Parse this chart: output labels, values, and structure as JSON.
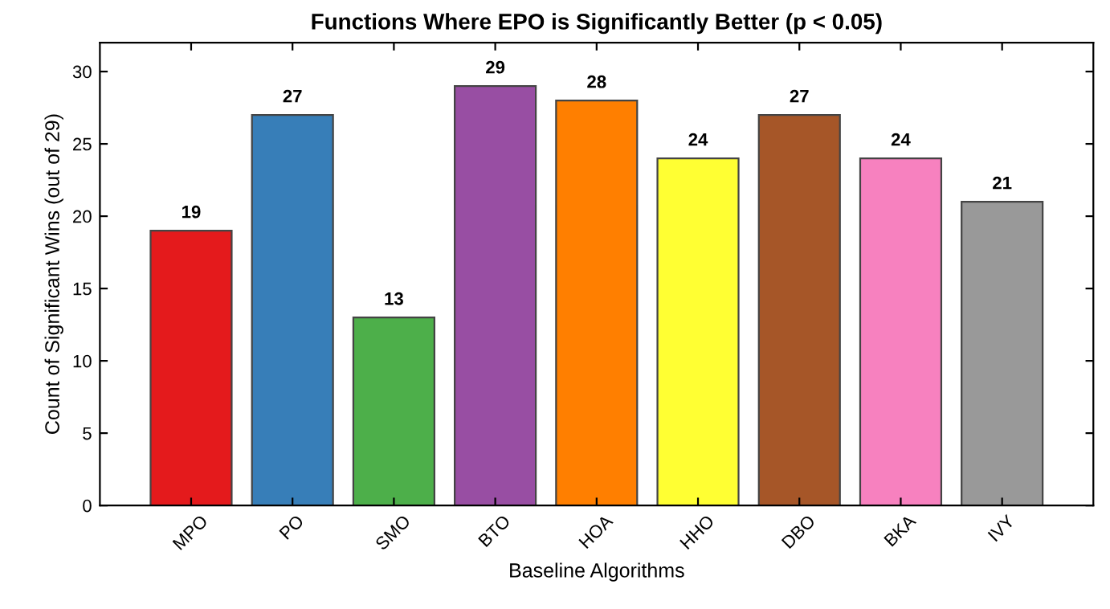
{
  "chart_data": {
    "type": "bar",
    "title": "Functions Where EPO is Significantly Better (p < 0.05)",
    "xlabel": "Baseline Algorithms",
    "ylabel": "Count of Significant Wins (out of 29)",
    "categories": [
      "MPO",
      "PO",
      "SMO",
      "BTO",
      "HOA",
      "HHO",
      "DBO",
      "BKA",
      "IVY"
    ],
    "values": [
      19,
      27,
      13,
      29,
      28,
      24,
      27,
      24,
      21
    ],
    "colors": [
      "#e41a1c",
      "#377eb8",
      "#4daf4a",
      "#984ea3",
      "#ff7f00",
      "#ffff33",
      "#a65628",
      "#f781bf",
      "#999999"
    ],
    "ylim": [
      0,
      32
    ],
    "yticks": [
      0,
      5,
      10,
      15,
      20,
      25,
      30
    ],
    "data_labels": true,
    "grid": false
  }
}
